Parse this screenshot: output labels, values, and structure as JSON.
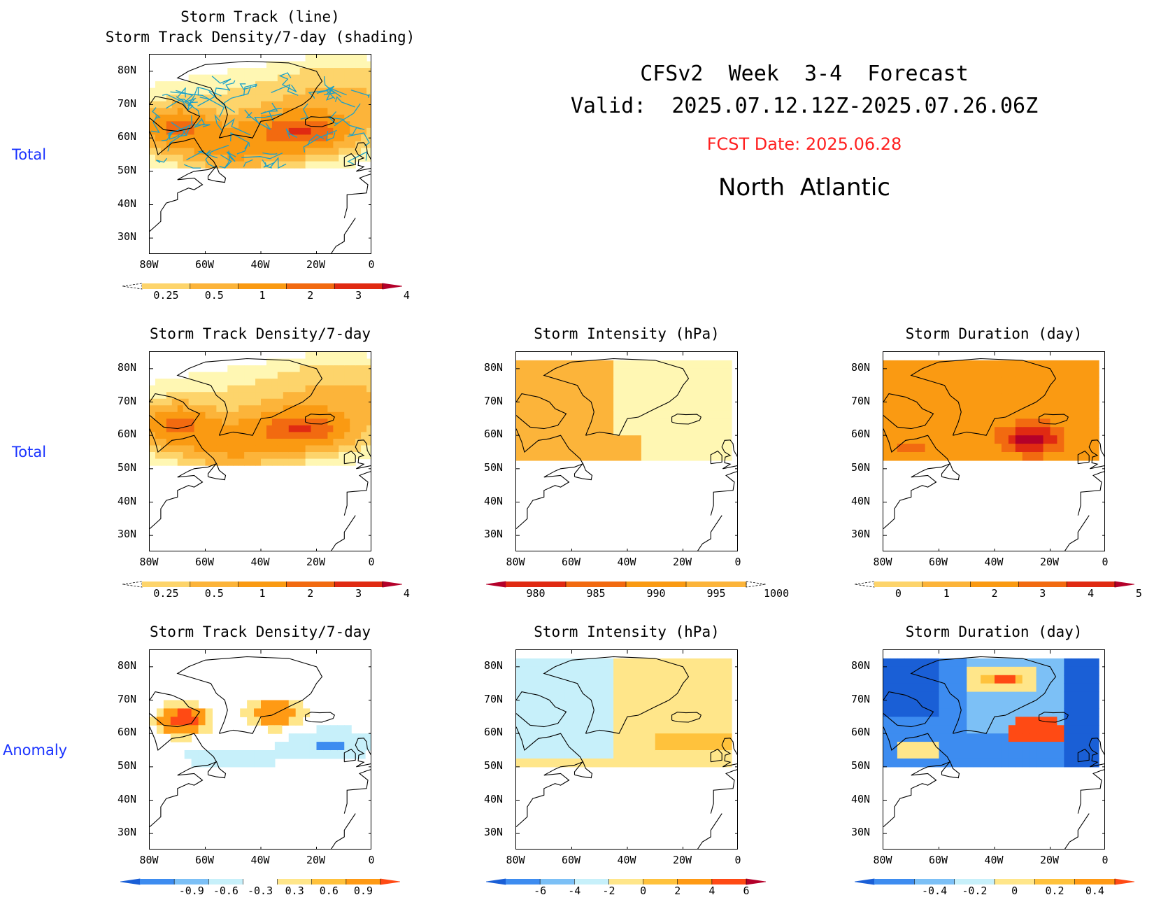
{
  "header": {
    "line1": "CFSv2  Week  3-4  Forecast",
    "line2": "Valid:  2025.07.12.12Z-2025.07.26.06Z",
    "fcst_date": "FCST Date: 2025.06.28",
    "region": "North  Atlantic",
    "fcst_color": "#ff2020"
  },
  "row_labels": [
    "Total",
    "Total",
    "Anomaly"
  ],
  "lat_ticks": [
    "80N",
    "70N",
    "60N",
    "50N",
    "40N",
    "30N"
  ],
  "lon_ticks": [
    "80W",
    "60W",
    "40W",
    "20W",
    "0"
  ],
  "panels": [
    {
      "id": "p0",
      "title": "Storm Track (line)\nStorm Track Density/7-day (shading)",
      "field": "density",
      "tracks": true
    },
    {
      "id": "p1",
      "title": "Storm Track Density/7-day",
      "field": "density",
      "tracks": false
    },
    {
      "id": "p2",
      "title": "Storm Intensity (hPa)",
      "field": "intensity",
      "tracks": false
    },
    {
      "id": "p3",
      "title": "Storm Duration (day)",
      "field": "duration",
      "tracks": false
    },
    {
      "id": "p4",
      "title": "Storm Track Density/7-day",
      "field": "density_anom",
      "tracks": false
    },
    {
      "id": "p5",
      "title": "Storm Intensity (hPa)",
      "field": "intensity_anom",
      "tracks": false
    },
    {
      "id": "p6",
      "title": "Storm Duration (day)",
      "field": "duration_anom",
      "tracks": false
    }
  ],
  "colorbars": [
    {
      "id": "cb0",
      "labels": [
        "0.25",
        "0.5",
        "1",
        "2",
        "3",
        "4"
      ],
      "colors": [
        "#fff7b3",
        "#fdd46b",
        "#fcb43a",
        "#fa9a12",
        "#f26a10",
        "#e02a12",
        "#b4002a"
      ],
      "extend_left_dashed": true
    },
    {
      "id": "cb1",
      "labels": [
        "0.25",
        "0.5",
        "1",
        "2",
        "3",
        "4"
      ],
      "colors": [
        "#fff7b3",
        "#fdd46b",
        "#fcb43a",
        "#fa9a12",
        "#f26a10",
        "#e02a12",
        "#b4002a"
      ],
      "extend_left_dashed": true
    },
    {
      "id": "cb2",
      "labels": [
        "980",
        "985",
        "990",
        "995",
        "1000"
      ],
      "colors": [
        "#b4002a",
        "#e02a12",
        "#f26a10",
        "#fa9a12",
        "#fcb43a",
        "#fff7b3"
      ],
      "extend_right_dashed": true
    },
    {
      "id": "cb3",
      "labels": [
        "0",
        "1",
        "2",
        "3",
        "4",
        "5"
      ],
      "colors": [
        "#fff7b3",
        "#fdd46b",
        "#fcb43a",
        "#fa9a12",
        "#f26a10",
        "#e02a12",
        "#b4002a"
      ],
      "extend_left_dashed": true
    },
    {
      "id": "cb4",
      "labels": [
        "-0.9",
        "-0.6",
        "-0.3",
        "0.3",
        "0.6",
        "0.9"
      ],
      "colors": [
        "#1a5fd6",
        "#3d8cf0",
        "#7cc0f6",
        "#c7f0fa",
        "#ffffff",
        "#ffe68a",
        "#ffc23c",
        "#ff9a14",
        "#ff4a14"
      ]
    },
    {
      "id": "cb5",
      "labels": [
        "-6",
        "-4",
        "-2",
        "0",
        "2",
        "4",
        "6"
      ],
      "colors": [
        "#1a5fd6",
        "#3d8cf0",
        "#7cc0f6",
        "#c7f0fa",
        "#ffe68a",
        "#ffc23c",
        "#ff9a14",
        "#ff4a14",
        "#b4002a"
      ]
    },
    {
      "id": "cb6",
      "labels": [
        "-0.4",
        "-0.2",
        "0",
        "0.2",
        "0.4"
      ],
      "colors": [
        "#1a5fd6",
        "#3d8cf0",
        "#7cc0f6",
        "#c7f0fa",
        "#ffe68a",
        "#ffc23c",
        "#ff9a14",
        "#ff4a14"
      ]
    }
  ],
  "colors": {
    "track_line": "#1aa0c8",
    "coast": "#000000",
    "row_label": "#1a33ff"
  }
}
